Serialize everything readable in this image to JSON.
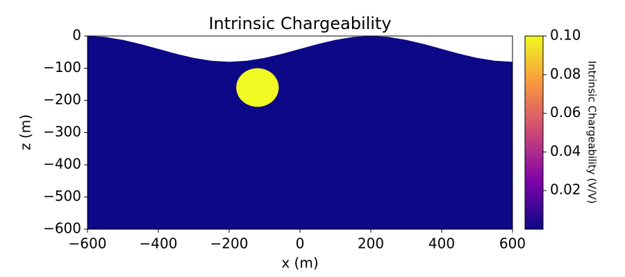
{
  "chart_data": {
    "type": "image",
    "title": "Intrinsic Chargeability",
    "xlabel": "x (m)",
    "ylabel": "z (m)",
    "xlim": [
      -600,
      600
    ],
    "ylim": [
      -600,
      0
    ],
    "xticks": [
      {
        "value": -600,
        "label": "−600"
      },
      {
        "value": -400,
        "label": "−400"
      },
      {
        "value": -200,
        "label": "−200"
      },
      0,
      200,
      400,
      600
    ],
    "yticks": [
      0,
      {
        "value": -100,
        "label": "−100"
      },
      {
        "value": -200,
        "label": "−200"
      },
      {
        "value": -300,
        "label": "−300"
      },
      {
        "value": -400,
        "label": "−400"
      },
      {
        "value": -500,
        "label": "−500"
      },
      {
        "value": -600,
        "label": "−600"
      }
    ],
    "background_value": 0,
    "surface": {
      "x": [
        -600,
        -550,
        -500,
        -450,
        -400,
        -350,
        -300,
        -250,
        -200,
        -150,
        -100,
        -50,
        0,
        50,
        100,
        150,
        200,
        250,
        300,
        350,
        400,
        450,
        500,
        550,
        600
      ],
      "z": [
        0,
        -3,
        -12,
        -25,
        -40,
        -55,
        -68,
        -77,
        -80,
        -77,
        -68,
        -55,
        -40,
        -25,
        -12,
        -3,
        0,
        -3,
        -12,
        -25,
        -40,
        -55,
        -68,
        -77,
        -80
      ]
    },
    "sphere": {
      "x": -120,
      "z": -160,
      "radius": 60,
      "value": 0.1
    },
    "colorbar": {
      "label": "Intrinsic Chargeability (V/V)",
      "colormap": "plasma",
      "clim": [
        0,
        0.1
      ],
      "ticks": [
        0.02,
        0.04,
        0.06,
        0.08,
        {
          "value": 0.1,
          "label": "0.10"
        }
      ]
    }
  }
}
